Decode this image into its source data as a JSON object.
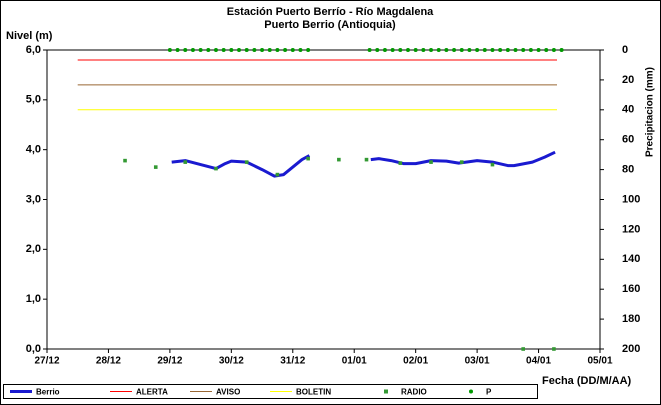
{
  "chart_data": {
    "type": "line",
    "title": "Estación Puerto Berrío - Río Magdalena",
    "subtitle": "Puerto Berrio (Antioquia)",
    "y_label": "Nivel (m)",
    "y2_label": "Precipitacion (mm)",
    "x_label": "Fecha (DD/M/AA)",
    "xlim": [
      0,
      9
    ],
    "xticks": [
      {
        "value": 0,
        "label": "27/12"
      },
      {
        "value": 1,
        "label": "28/12"
      },
      {
        "value": 2,
        "label": "29/12"
      },
      {
        "value": 3,
        "label": "30/12"
      },
      {
        "value": 4,
        "label": "31/12"
      },
      {
        "value": 5,
        "label": "01/01"
      },
      {
        "value": 6,
        "label": "02/01"
      },
      {
        "value": 7,
        "label": "03/01"
      },
      {
        "value": 8,
        "label": "04/01"
      },
      {
        "value": 9,
        "label": "05/01"
      }
    ],
    "ylim": [
      0,
      6
    ],
    "yticks": [
      {
        "value": 0,
        "label": "0,0"
      },
      {
        "value": 1,
        "label": "1,0"
      },
      {
        "value": 2,
        "label": "2,0"
      },
      {
        "value": 3,
        "label": "3,0"
      },
      {
        "value": 4,
        "label": "4,0"
      },
      {
        "value": 5,
        "label": "5,0"
      },
      {
        "value": 6,
        "label": "6,0"
      }
    ],
    "y2lim": [
      0,
      200
    ],
    "y2_inverted": true,
    "y2ticks": [
      0,
      20,
      40,
      60,
      80,
      100,
      120,
      140,
      160,
      180,
      200
    ],
    "series": [
      {
        "name": "Berrio",
        "color": "#1a1ad0",
        "style": "line",
        "width": 3,
        "x": [
          2.03,
          2.25,
          2.5,
          2.75,
          2.9,
          3.0,
          3.25,
          3.5,
          3.7,
          3.85,
          4.0,
          4.15,
          4.27,
          4.6,
          5.27,
          5.4,
          5.6,
          5.8,
          6.0,
          6.25,
          6.5,
          6.7,
          7.0,
          7.25,
          7.5,
          7.6,
          7.9,
          8.1,
          8.27
        ],
        "values": [
          3.75,
          3.78,
          3.7,
          3.62,
          3.72,
          3.77,
          3.75,
          3.6,
          3.47,
          3.5,
          3.65,
          3.8,
          3.88,
          null,
          3.8,
          3.82,
          3.78,
          3.72,
          3.72,
          3.78,
          3.77,
          3.73,
          3.78,
          3.75,
          3.68,
          3.68,
          3.75,
          3.85,
          3.95
        ]
      },
      {
        "name": "ALERTA",
        "color": "#ff0000",
        "style": "line",
        "width": 1,
        "x": [
          0.5,
          8.3
        ],
        "values": [
          5.8,
          5.8
        ]
      },
      {
        "name": "AVISO",
        "color": "#996633",
        "style": "line",
        "width": 1,
        "x": [
          0.5,
          8.3
        ],
        "values": [
          5.3,
          5.3
        ]
      },
      {
        "name": "BOLETIN",
        "color": "#ffff00",
        "style": "line",
        "width": 1,
        "x": [
          0.5,
          8.3
        ],
        "values": [
          4.8,
          4.8
        ]
      },
      {
        "name": "RADIO",
        "color": "#339933",
        "style": "square",
        "x": [
          1.27,
          1.77,
          2.25,
          2.75,
          3.25,
          3.75,
          4.25,
          4.75,
          5.2,
          5.75,
          6.25,
          6.75,
          7.25,
          7.75,
          8.25
        ],
        "values": [
          3.78,
          3.65,
          3.75,
          3.62,
          3.75,
          3.5,
          3.82,
          3.8,
          3.8,
          3.73,
          3.75,
          3.75,
          3.7,
          0,
          0
        ]
      },
      {
        "name": "P",
        "color": "#009900",
        "style": "dot",
        "axis": "y2",
        "x": [
          2.0,
          2.125,
          2.25,
          2.375,
          2.5,
          2.625,
          2.75,
          2.875,
          3.0,
          3.125,
          3.25,
          3.375,
          3.5,
          3.625,
          3.75,
          3.875,
          4.0,
          4.125,
          4.25,
          5.25,
          5.375,
          5.5,
          5.625,
          5.75,
          5.875,
          6.0,
          6.125,
          6.25,
          6.375,
          6.5,
          6.625,
          6.75,
          6.875,
          7.0,
          7.125,
          7.25,
          7.375,
          7.5,
          7.625,
          7.75,
          7.875,
          8.0,
          8.125,
          8.25,
          8.375
        ],
        "values": [
          0,
          0,
          0,
          0,
          0,
          0,
          0,
          0,
          0,
          0,
          0,
          0,
          0,
          0,
          0,
          0,
          0,
          0,
          0,
          0,
          0,
          0,
          0,
          0,
          0,
          0,
          0,
          0,
          0,
          0,
          0,
          0,
          0,
          0,
          0,
          0,
          0,
          0,
          0,
          0,
          0,
          0,
          0,
          0,
          0
        ]
      }
    ]
  }
}
